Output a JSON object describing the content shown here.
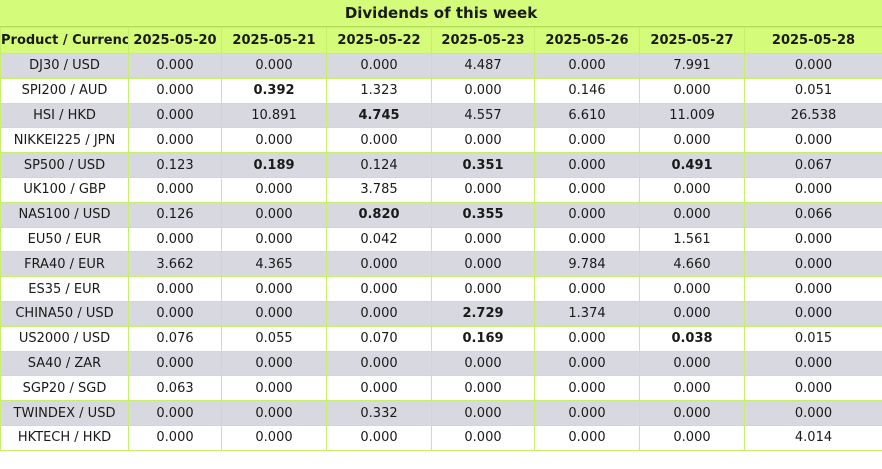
{
  "title": "Dividends of this week",
  "columns": [
    "Product / Currency",
    "2025-05-20",
    "2025-05-21",
    "2025-05-22",
    "2025-05-23",
    "2025-05-26",
    "2025-05-27",
    "2025-05-28"
  ],
  "rows": [
    {
      "product": "DJ30 / USD",
      "values": [
        "0.000",
        "0.000",
        "0.000",
        "4.487",
        "0.000",
        "7.991",
        "0.000"
      ],
      "bold": [
        false,
        false,
        false,
        false,
        false,
        false,
        false
      ]
    },
    {
      "product": "SPI200 / AUD",
      "values": [
        "0.000",
        "0.392",
        "1.323",
        "0.000",
        "0.146",
        "0.000",
        "0.051"
      ],
      "bold": [
        false,
        true,
        false,
        false,
        false,
        false,
        false
      ]
    },
    {
      "product": "HSI / HKD",
      "values": [
        "0.000",
        "10.891",
        "4.745",
        "4.557",
        "6.610",
        "11.009",
        "26.538"
      ],
      "bold": [
        false,
        false,
        true,
        false,
        false,
        false,
        false
      ]
    },
    {
      "product": "NIKKEI225 / JPN",
      "values": [
        "0.000",
        "0.000",
        "0.000",
        "0.000",
        "0.000",
        "0.000",
        "0.000"
      ],
      "bold": [
        false,
        false,
        false,
        false,
        false,
        false,
        false
      ]
    },
    {
      "product": "SP500 / USD",
      "values": [
        "0.123",
        "0.189",
        "0.124",
        "0.351",
        "0.000",
        "0.491",
        "0.067"
      ],
      "bold": [
        false,
        true,
        false,
        true,
        false,
        true,
        false
      ]
    },
    {
      "product": "UK100 / GBP",
      "values": [
        "0.000",
        "0.000",
        "3.785",
        "0.000",
        "0.000",
        "0.000",
        "0.000"
      ],
      "bold": [
        false,
        false,
        false,
        false,
        false,
        false,
        false
      ]
    },
    {
      "product": "NAS100 / USD",
      "values": [
        "0.126",
        "0.000",
        "0.820",
        "0.355",
        "0.000",
        "0.000",
        "0.066"
      ],
      "bold": [
        false,
        false,
        true,
        true,
        false,
        false,
        false
      ]
    },
    {
      "product": "EU50 / EUR",
      "values": [
        "0.000",
        "0.000",
        "0.042",
        "0.000",
        "0.000",
        "1.561",
        "0.000"
      ],
      "bold": [
        false,
        false,
        false,
        false,
        false,
        false,
        false
      ]
    },
    {
      "product": "FRA40 / EUR",
      "values": [
        "3.662",
        "4.365",
        "0.000",
        "0.000",
        "9.784",
        "4.660",
        "0.000"
      ],
      "bold": [
        false,
        false,
        false,
        false,
        false,
        false,
        false
      ]
    },
    {
      "product": "ES35 / EUR",
      "values": [
        "0.000",
        "0.000",
        "0.000",
        "0.000",
        "0.000",
        "0.000",
        "0.000"
      ],
      "bold": [
        false,
        false,
        false,
        false,
        false,
        false,
        false
      ]
    },
    {
      "product": "CHINA50 / USD",
      "values": [
        "0.000",
        "0.000",
        "0.000",
        "2.729",
        "1.374",
        "0.000",
        "0.000"
      ],
      "bold": [
        false,
        false,
        false,
        true,
        false,
        false,
        false
      ]
    },
    {
      "product": "US2000 / USD",
      "values": [
        "0.076",
        "0.055",
        "0.070",
        "0.169",
        "0.000",
        "0.038",
        "0.015"
      ],
      "bold": [
        false,
        false,
        false,
        true,
        false,
        true,
        false
      ]
    },
    {
      "product": "SA40 / ZAR",
      "values": [
        "0.000",
        "0.000",
        "0.000",
        "0.000",
        "0.000",
        "0.000",
        "0.000"
      ],
      "bold": [
        false,
        false,
        false,
        false,
        false,
        false,
        false
      ]
    },
    {
      "product": "SGP20 / SGD",
      "values": [
        "0.063",
        "0.000",
        "0.000",
        "0.000",
        "0.000",
        "0.000",
        "0.000"
      ],
      "bold": [
        false,
        false,
        false,
        false,
        false,
        false,
        false
      ]
    },
    {
      "product": "TWINDEX / USD",
      "values": [
        "0.000",
        "0.000",
        "0.332",
        "0.000",
        "0.000",
        "0.000",
        "0.000"
      ],
      "bold": [
        false,
        false,
        false,
        false,
        false,
        false,
        false
      ]
    },
    {
      "product": "HKTECH / HKD",
      "values": [
        "0.000",
        "0.000",
        "0.000",
        "0.000",
        "0.000",
        "0.000",
        "4.014"
      ],
      "bold": [
        false,
        false,
        false,
        false,
        false,
        false,
        false
      ]
    }
  ],
  "colors": {
    "header_bg": "#d4fb79",
    "row_alt_bg": "#d8d8e0",
    "border": "#c8ee6e"
  }
}
